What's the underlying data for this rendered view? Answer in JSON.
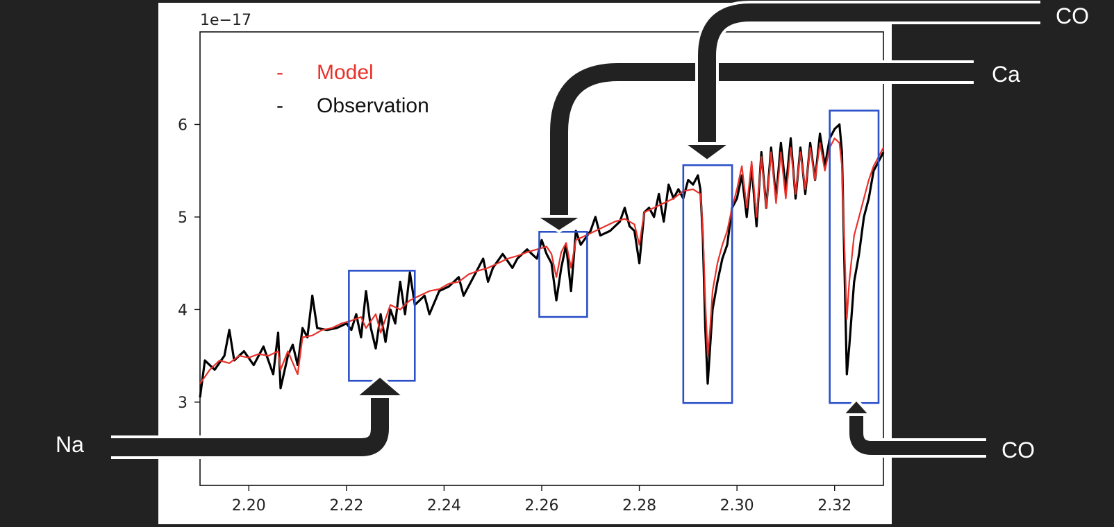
{
  "chart_data": {
    "type": "line",
    "title": "",
    "xlabel": "",
    "ylabel": "",
    "y_offset_label": "1e−17",
    "xlim": [
      2.19,
      2.33
    ],
    "ylim": [
      2.1,
      7.0
    ],
    "y_scale": 1e-17,
    "x_ticks": [
      2.2,
      2.22,
      2.24,
      2.26,
      2.28,
      2.3,
      2.32
    ],
    "x_tick_labels": [
      "2.20",
      "2.22",
      "2.24",
      "2.26",
      "2.28",
      "2.30",
      "2.32"
    ],
    "y_ticks": [
      3,
      4,
      5,
      6
    ],
    "y_tick_labels": [
      "3",
      "4",
      "5",
      "6"
    ],
    "grid": false,
    "legend": {
      "placement": "upper-left",
      "entries": [
        {
          "marker": "-",
          "label": "Model",
          "color": "#e8312a"
        },
        {
          "marker": "-",
          "label": "Observation",
          "color": "#000000"
        }
      ]
    },
    "series": [
      {
        "name": "Observation",
        "color": "#000000",
        "points": [
          [
            2.19,
            3.05
          ],
          [
            2.191,
            3.45
          ],
          [
            2.193,
            3.35
          ],
          [
            2.195,
            3.5
          ],
          [
            2.196,
            3.78
          ],
          [
            2.197,
            3.45
          ],
          [
            2.199,
            3.55
          ],
          [
            2.201,
            3.4
          ],
          [
            2.203,
            3.6
          ],
          [
            2.204,
            3.45
          ],
          [
            2.205,
            3.3
          ],
          [
            2.206,
            3.75
          ],
          [
            2.2065,
            3.15
          ],
          [
            2.208,
            3.5
          ],
          [
            2.209,
            3.62
          ],
          [
            2.21,
            3.4
          ],
          [
            2.211,
            3.8
          ],
          [
            2.212,
            3.7
          ],
          [
            2.213,
            4.15
          ],
          [
            2.214,
            3.8
          ],
          [
            2.216,
            3.78
          ],
          [
            2.218,
            3.8
          ],
          [
            2.22,
            3.85
          ],
          [
            2.221,
            3.78
          ],
          [
            2.222,
            3.95
          ],
          [
            2.223,
            3.7
          ],
          [
            2.224,
            4.2
          ],
          [
            2.225,
            3.8
          ],
          [
            2.226,
            3.58
          ],
          [
            2.227,
            3.95
          ],
          [
            2.228,
            3.65
          ],
          [
            2.229,
            4.0
          ],
          [
            2.23,
            3.85
          ],
          [
            2.231,
            4.3
          ],
          [
            2.232,
            3.95
          ],
          [
            2.233,
            4.4
          ],
          [
            2.234,
            4.05
          ],
          [
            2.236,
            4.15
          ],
          [
            2.237,
            3.95
          ],
          [
            2.239,
            4.2
          ],
          [
            2.241,
            4.25
          ],
          [
            2.243,
            4.35
          ],
          [
            2.244,
            4.15
          ],
          [
            2.246,
            4.35
          ],
          [
            2.248,
            4.55
          ],
          [
            2.249,
            4.3
          ],
          [
            2.25,
            4.45
          ],
          [
            2.252,
            4.6
          ],
          [
            2.254,
            4.45
          ],
          [
            2.255,
            4.55
          ],
          [
            2.257,
            4.65
          ],
          [
            2.259,
            4.55
          ],
          [
            2.26,
            4.75
          ],
          [
            2.261,
            4.6
          ],
          [
            2.262,
            4.5
          ],
          [
            2.263,
            4.1
          ],
          [
            2.264,
            4.45
          ],
          [
            2.265,
            4.7
          ],
          [
            2.266,
            4.2
          ],
          [
            2.267,
            4.85
          ],
          [
            2.268,
            4.7
          ],
          [
            2.27,
            4.85
          ],
          [
            2.271,
            5.0
          ],
          [
            2.272,
            4.8
          ],
          [
            2.274,
            4.85
          ],
          [
            2.276,
            4.95
          ],
          [
            2.277,
            5.1
          ],
          [
            2.278,
            4.9
          ],
          [
            2.279,
            4.85
          ],
          [
            2.28,
            4.5
          ],
          [
            2.281,
            5.05
          ],
          [
            2.282,
            5.1
          ],
          [
            2.283,
            5.0
          ],
          [
            2.284,
            5.25
          ],
          [
            2.285,
            4.95
          ],
          [
            2.286,
            5.35
          ],
          [
            2.287,
            5.2
          ],
          [
            2.288,
            5.3
          ],
          [
            2.289,
            5.2
          ],
          [
            2.29,
            5.4
          ],
          [
            2.291,
            5.35
          ],
          [
            2.292,
            5.45
          ],
          [
            2.2925,
            5.3
          ],
          [
            2.293,
            4.8
          ],
          [
            2.2935,
            3.8
          ],
          [
            2.294,
            3.2
          ],
          [
            2.2945,
            3.6
          ],
          [
            2.295,
            4.0
          ],
          [
            2.296,
            4.3
          ],
          [
            2.297,
            4.55
          ],
          [
            2.298,
            4.7
          ],
          [
            2.299,
            5.1
          ],
          [
            2.3,
            5.2
          ],
          [
            2.301,
            5.45
          ],
          [
            2.302,
            5.0
          ],
          [
            2.303,
            5.55
          ],
          [
            2.304,
            4.9
          ],
          [
            2.305,
            5.7
          ],
          [
            2.306,
            5.1
          ],
          [
            2.307,
            5.75
          ],
          [
            2.308,
            5.2
          ],
          [
            2.309,
            5.8
          ],
          [
            2.31,
            5.3
          ],
          [
            2.311,
            5.85
          ],
          [
            2.312,
            5.2
          ],
          [
            2.313,
            5.75
          ],
          [
            2.314,
            5.25
          ],
          [
            2.315,
            5.8
          ],
          [
            2.316,
            5.4
          ],
          [
            2.317,
            5.9
          ],
          [
            2.318,
            5.55
          ],
          [
            2.319,
            5.85
          ],
          [
            2.32,
            5.95
          ],
          [
            2.321,
            6.0
          ],
          [
            2.3215,
            5.7
          ],
          [
            2.322,
            4.5
          ],
          [
            2.3225,
            3.3
          ],
          [
            2.323,
            3.6
          ],
          [
            2.324,
            4.3
          ],
          [
            2.325,
            4.6
          ],
          [
            2.326,
            5.0
          ],
          [
            2.327,
            5.2
          ],
          [
            2.328,
            5.5
          ],
          [
            2.329,
            5.6
          ],
          [
            2.33,
            5.7
          ]
        ]
      },
      {
        "name": "Model",
        "color": "#e8312a",
        "points": [
          [
            2.19,
            3.2
          ],
          [
            2.192,
            3.35
          ],
          [
            2.194,
            3.45
          ],
          [
            2.196,
            3.42
          ],
          [
            2.198,
            3.5
          ],
          [
            2.2,
            3.48
          ],
          [
            2.202,
            3.52
          ],
          [
            2.204,
            3.5
          ],
          [
            2.206,
            3.55
          ],
          [
            2.2065,
            3.35
          ],
          [
            2.208,
            3.55
          ],
          [
            2.21,
            3.3
          ],
          [
            2.211,
            3.7
          ],
          [
            2.213,
            3.72
          ],
          [
            2.215,
            3.78
          ],
          [
            2.217,
            3.8
          ],
          [
            2.219,
            3.85
          ],
          [
            2.221,
            3.88
          ],
          [
            2.223,
            3.92
          ],
          [
            2.224,
            3.8
          ],
          [
            2.226,
            3.95
          ],
          [
            2.227,
            3.75
          ],
          [
            2.229,
            4.05
          ],
          [
            2.231,
            4.0
          ],
          [
            2.233,
            4.1
          ],
          [
            2.235,
            4.15
          ],
          [
            2.237,
            4.2
          ],
          [
            2.239,
            4.22
          ],
          [
            2.241,
            4.28
          ],
          [
            2.243,
            4.3
          ],
          [
            2.245,
            4.38
          ],
          [
            2.247,
            4.42
          ],
          [
            2.249,
            4.45
          ],
          [
            2.251,
            4.5
          ],
          [
            2.253,
            4.55
          ],
          [
            2.255,
            4.58
          ],
          [
            2.257,
            4.62
          ],
          [
            2.259,
            4.65
          ],
          [
            2.261,
            4.68
          ],
          [
            2.262,
            4.6
          ],
          [
            2.263,
            4.35
          ],
          [
            2.264,
            4.62
          ],
          [
            2.265,
            4.72
          ],
          [
            2.266,
            4.45
          ],
          [
            2.267,
            4.75
          ],
          [
            2.269,
            4.8
          ],
          [
            2.271,
            4.85
          ],
          [
            2.273,
            4.9
          ],
          [
            2.275,
            4.95
          ],
          [
            2.277,
            4.98
          ],
          [
            2.279,
            4.92
          ],
          [
            2.28,
            4.7
          ],
          [
            2.281,
            5.05
          ],
          [
            2.283,
            5.1
          ],
          [
            2.285,
            5.15
          ],
          [
            2.287,
            5.2
          ],
          [
            2.289,
            5.28
          ],
          [
            2.291,
            5.3
          ],
          [
            2.2925,
            5.25
          ],
          [
            2.293,
            4.9
          ],
          [
            2.2935,
            4.1
          ],
          [
            2.294,
            3.5
          ],
          [
            2.2945,
            3.8
          ],
          [
            2.295,
            4.2
          ],
          [
            2.296,
            4.5
          ],
          [
            2.297,
            4.7
          ],
          [
            2.298,
            4.85
          ],
          [
            2.299,
            5.1
          ],
          [
            2.3,
            5.3
          ],
          [
            2.301,
            5.55
          ],
          [
            2.302,
            5.1
          ],
          [
            2.303,
            5.6
          ],
          [
            2.304,
            5.0
          ],
          [
            2.305,
            5.65
          ],
          [
            2.306,
            5.1
          ],
          [
            2.307,
            5.7
          ],
          [
            2.308,
            5.15
          ],
          [
            2.309,
            5.7
          ],
          [
            2.31,
            5.2
          ],
          [
            2.311,
            5.75
          ],
          [
            2.312,
            5.25
          ],
          [
            2.313,
            5.7
          ],
          [
            2.314,
            5.3
          ],
          [
            2.315,
            5.75
          ],
          [
            2.316,
            5.4
          ],
          [
            2.317,
            5.8
          ],
          [
            2.318,
            5.5
          ],
          [
            2.319,
            5.75
          ],
          [
            2.32,
            5.85
          ],
          [
            2.321,
            5.8
          ],
          [
            2.3215,
            5.55
          ],
          [
            2.322,
            4.7
          ],
          [
            2.3225,
            3.9
          ],
          [
            2.323,
            4.3
          ],
          [
            2.324,
            4.8
          ],
          [
            2.325,
            5.0
          ],
          [
            2.326,
            5.2
          ],
          [
            2.327,
            5.4
          ],
          [
            2.328,
            5.55
          ],
          [
            2.329,
            5.65
          ],
          [
            2.33,
            5.75
          ]
        ]
      }
    ],
    "highlight_boxes": [
      {
        "x0": 2.2205,
        "x1": 2.234,
        "y0": 3.23,
        "y1": 4.42
      },
      {
        "x0": 2.2595,
        "x1": 2.2693,
        "y0": 3.92,
        "y1": 4.84
      },
      {
        "x0": 2.289,
        "x1": 2.299,
        "y0": 2.99,
        "y1": 5.56
      },
      {
        "x0": 2.319,
        "x1": 2.329,
        "y0": 2.99,
        "y1": 6.15
      }
    ],
    "annotations": [
      {
        "label": "Na",
        "target_box": 0
      },
      {
        "label": "Ca",
        "target_box": 1
      },
      {
        "label": "CO",
        "target_box": 2
      },
      {
        "label": "CO",
        "target_box": 3
      }
    ]
  }
}
